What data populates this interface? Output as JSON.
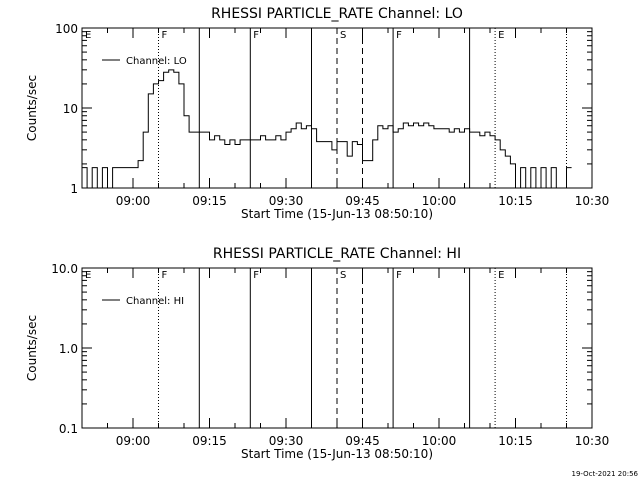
{
  "footer": {
    "timestamp": "19-Oct-2021 20:56"
  },
  "chart_data": [
    {
      "type": "line",
      "title": "RHESSI PARTICLE_RATE Channel: LO",
      "xlabel": "Start Time (15-Jun-13 08:50:10)",
      "ylabel": "Counts/sec",
      "yscale": "log",
      "xlim": [
        "08:50",
        "10:30"
      ],
      "ylim": [
        1,
        100
      ],
      "xticks": [
        "09:00",
        "09:15",
        "09:30",
        "09:45",
        "10:00",
        "10:15",
        "10:30"
      ],
      "yticks": [
        {
          "value": 1,
          "label": "1"
        },
        {
          "value": 10,
          "label": "10"
        },
        {
          "value": 100,
          "label": "100"
        }
      ],
      "grid": false,
      "legend": {
        "position": "top-left",
        "entries": [
          "Channel: LO"
        ]
      },
      "markers": [
        {
          "time": "08:50",
          "label": "E",
          "style": "dotted"
        },
        {
          "time": "09:05",
          "label": "F",
          "style": "dotted"
        },
        {
          "time": "09:13",
          "label": "",
          "style": "solid"
        },
        {
          "time": "09:23",
          "label": "F",
          "style": "solid"
        },
        {
          "time": "09:35",
          "label": "",
          "style": "solid"
        },
        {
          "time": "09:40",
          "label": "S",
          "style": "dashed"
        },
        {
          "time": "09:45",
          "label": "",
          "style": "dashed"
        },
        {
          "time": "09:51",
          "label": "F",
          "style": "solid"
        },
        {
          "time": "10:06",
          "label": "",
          "style": "solid"
        },
        {
          "time": "10:11",
          "label": "E",
          "style": "dotted"
        },
        {
          "time": "10:25",
          "label": "",
          "style": "dotted"
        }
      ],
      "series": [
        {
          "name": "Channel: LO",
          "color": "#000000",
          "points": [
            [
              "08:50",
              1.8
            ],
            [
              "08:51",
              1.0
            ],
            [
              "08:52",
              1.8
            ],
            [
              "08:53",
              1.0
            ],
            [
              "08:54",
              1.8
            ],
            [
              "08:55",
              1.0
            ],
            [
              "08:56",
              1.8
            ],
            [
              "08:57",
              1.8
            ],
            [
              "08:58",
              1.8
            ],
            [
              "08:59",
              1.8
            ],
            [
              "09:00",
              1.8
            ],
            [
              "09:01",
              2.2
            ],
            [
              "09:02",
              5.0
            ],
            [
              "09:03",
              15.0
            ],
            [
              "09:04",
              20.0
            ],
            [
              "09:05",
              22.0
            ],
            [
              "09:06",
              28.0
            ],
            [
              "09:07",
              30.0
            ],
            [
              "09:08",
              28.0
            ],
            [
              "09:09",
              20.0
            ],
            [
              "09:10",
              8.0
            ],
            [
              "09:11",
              5.0
            ],
            [
              "09:12",
              5.0
            ],
            [
              "09:13",
              5.0
            ],
            [
              "09:14",
              5.0
            ],
            [
              "09:15",
              4.0
            ],
            [
              "09:16",
              4.5
            ],
            [
              "09:17",
              4.0
            ],
            [
              "09:18",
              3.5
            ],
            [
              "09:19",
              4.0
            ],
            [
              "09:20",
              3.5
            ],
            [
              "09:21",
              4.0
            ],
            [
              "09:22",
              4.0
            ],
            [
              "09:23",
              4.0
            ],
            [
              "09:24",
              4.0
            ],
            [
              "09:25",
              4.5
            ],
            [
              "09:26",
              4.0
            ],
            [
              "09:27",
              4.0
            ],
            [
              "09:28",
              4.5
            ],
            [
              "09:29",
              4.0
            ],
            [
              "09:30",
              5.0
            ],
            [
              "09:31",
              5.5
            ],
            [
              "09:32",
              6.5
            ],
            [
              "09:33",
              5.5
            ],
            [
              "09:34",
              6.0
            ],
            [
              "09:35",
              5.5
            ],
            [
              "09:36",
              3.8
            ],
            [
              "09:37",
              3.8
            ],
            [
              "09:38",
              3.8
            ],
            [
              "09:39",
              3.0
            ],
            [
              "09:40",
              3.8
            ],
            [
              "09:41",
              3.8
            ],
            [
              "09:42",
              2.5
            ],
            [
              "09:43",
              3.8
            ],
            [
              "09:44",
              3.5
            ],
            [
              "09:45",
              2.2
            ],
            [
              "09:46",
              2.2
            ],
            [
              "09:47",
              4.0
            ],
            [
              "09:48",
              6.0
            ],
            [
              "09:49",
              5.5
            ],
            [
              "09:50",
              6.0
            ],
            [
              "09:51",
              5.0
            ],
            [
              "09:52",
              5.5
            ],
            [
              "09:53",
              6.5
            ],
            [
              "09:54",
              6.0
            ],
            [
              "09:55",
              6.5
            ],
            [
              "09:56",
              6.0
            ],
            [
              "09:57",
              6.5
            ],
            [
              "09:58",
              6.0
            ],
            [
              "09:59",
              5.5
            ],
            [
              "10:00",
              5.5
            ],
            [
              "10:01",
              5.5
            ],
            [
              "10:02",
              5.0
            ],
            [
              "10:03",
              5.5
            ],
            [
              "10:04",
              5.0
            ],
            [
              "10:05",
              5.5
            ],
            [
              "10:06",
              5.0
            ],
            [
              "10:07",
              5.0
            ],
            [
              "10:08",
              4.5
            ],
            [
              "10:09",
              5.0
            ],
            [
              "10:10",
              4.5
            ],
            [
              "10:11",
              4.0
            ],
            [
              "10:12",
              3.0
            ],
            [
              "10:13",
              2.5
            ],
            [
              "10:14",
              2.0
            ],
            [
              "10:15",
              1.0
            ],
            [
              "10:16",
              1.8
            ],
            [
              "10:17",
              1.0
            ],
            [
              "10:18",
              1.8
            ],
            [
              "10:19",
              1.0
            ],
            [
              "10:20",
              1.8
            ],
            [
              "10:21",
              1.0
            ],
            [
              "10:22",
              1.8
            ],
            [
              "10:23",
              1.0
            ],
            [
              "10:24",
              1.0
            ],
            [
              "10:25",
              1.8
            ]
          ]
        }
      ]
    },
    {
      "type": "line",
      "title": "RHESSI PARTICLE_RATE Channel: HI",
      "xlabel": "Start Time (15-Jun-13 08:50:10)",
      "ylabel": "Counts/sec",
      "yscale": "log",
      "xlim": [
        "08:50",
        "10:30"
      ],
      "ylim": [
        0.1,
        10
      ],
      "xticks": [
        "09:00",
        "09:15",
        "09:30",
        "09:45",
        "10:00",
        "10:15",
        "10:30"
      ],
      "yticks": [
        {
          "value": 0.1,
          "label": "0.1"
        },
        {
          "value": 1,
          "label": "1.0"
        },
        {
          "value": 10,
          "label": "10.0"
        }
      ],
      "grid": false,
      "legend": {
        "position": "top-left",
        "entries": [
          "Channel: HI"
        ]
      },
      "markers": [
        {
          "time": "08:50",
          "label": "E",
          "style": "dotted"
        },
        {
          "time": "09:05",
          "label": "F",
          "style": "dotted"
        },
        {
          "time": "09:13",
          "label": "",
          "style": "solid"
        },
        {
          "time": "09:23",
          "label": "F",
          "style": "solid"
        },
        {
          "time": "09:35",
          "label": "",
          "style": "solid"
        },
        {
          "time": "09:40",
          "label": "S",
          "style": "dashed"
        },
        {
          "time": "09:45",
          "label": "",
          "style": "dashed"
        },
        {
          "time": "09:51",
          "label": "F",
          "style": "solid"
        },
        {
          "time": "10:06",
          "label": "",
          "style": "solid"
        },
        {
          "time": "10:11",
          "label": "E",
          "style": "dotted"
        },
        {
          "time": "10:25",
          "label": "",
          "style": "dotted"
        }
      ],
      "series": [
        {
          "name": "Channel: HI",
          "color": "#000000",
          "points": []
        }
      ]
    }
  ]
}
